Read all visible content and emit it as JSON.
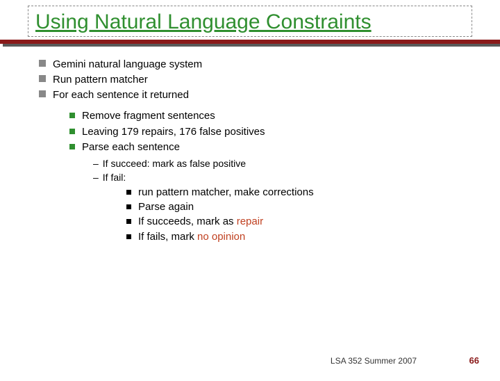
{
  "title": "Using Natural Language Constraints",
  "colors": {
    "title_color": "#2f8f2f",
    "rule_color": "#8a1a1a",
    "lvl1_bullet": "#888888",
    "lvl2_bullet": "#2f8f2f",
    "highlight": "#c04020",
    "background": "#ffffff"
  },
  "lvl1": {
    "a": "Gemini natural language system",
    "b": "Run pattern matcher",
    "c": "For each sentence it returned"
  },
  "lvl2": {
    "a": "Remove fragment sentences",
    "b": "Leaving 179 repairs, 176 false positives",
    "c": "Parse each sentence"
  },
  "lvl3": {
    "a": "If succeed: mark as false positive",
    "b": "If fail:"
  },
  "lvl4": {
    "a": "run pattern matcher, make corrections",
    "b": "Parse again",
    "c_pre": "If succeeds, mark as ",
    "c_hl": "repair",
    "d_pre": "If fails, mark ",
    "d_hl": "no opinion"
  },
  "footer": "LSA 352 Summer 2007",
  "page": "66"
}
